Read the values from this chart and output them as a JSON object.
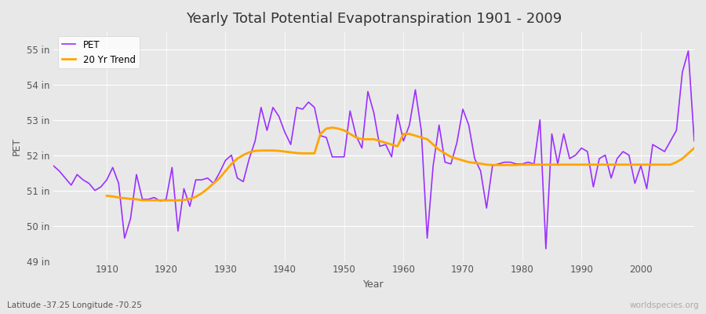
{
  "title": "Yearly Total Potential Evapotranspiration 1901 - 2009",
  "xlabel": "Year",
  "ylabel": "PET",
  "subtitle": "Latitude -37.25 Longitude -70.25",
  "watermark": "worldspecies.org",
  "ylim": [
    49,
    55.5
  ],
  "yticks": [
    49,
    50,
    51,
    52,
    53,
    54,
    55
  ],
  "ytick_labels": [
    "49 in",
    "50 in",
    "51 in",
    "52 in",
    "53 in",
    "54 in",
    "55 in"
  ],
  "xlim": [
    1901,
    2009
  ],
  "pet_color": "#9B30FF",
  "trend_color": "#FFA500",
  "bg_color": "#E8E8E8",
  "legend_bg": "#FFFFFF",
  "years": [
    1901,
    1902,
    1903,
    1904,
    1905,
    1906,
    1907,
    1908,
    1909,
    1910,
    1911,
    1912,
    1913,
    1914,
    1915,
    1916,
    1917,
    1918,
    1919,
    1920,
    1921,
    1922,
    1923,
    1924,
    1925,
    1926,
    1927,
    1928,
    1929,
    1930,
    1931,
    1932,
    1933,
    1934,
    1935,
    1936,
    1937,
    1938,
    1939,
    1940,
    1941,
    1942,
    1943,
    1944,
    1945,
    1946,
    1947,
    1948,
    1949,
    1950,
    1951,
    1952,
    1953,
    1954,
    1955,
    1956,
    1957,
    1958,
    1959,
    1960,
    1961,
    1962,
    1963,
    1964,
    1965,
    1966,
    1967,
    1968,
    1969,
    1970,
    1971,
    1972,
    1973,
    1974,
    1975,
    1976,
    1977,
    1978,
    1979,
    1980,
    1981,
    1982,
    1983,
    1984,
    1985,
    1986,
    1987,
    1988,
    1989,
    1990,
    1991,
    1992,
    1993,
    1994,
    1995,
    1996,
    1997,
    1998,
    1999,
    2000,
    2001,
    2002,
    2003,
    2004,
    2005,
    2006,
    2007,
    2008,
    2009
  ],
  "pet_values": [
    51.7,
    51.55,
    51.35,
    51.15,
    51.45,
    51.3,
    51.2,
    51.0,
    51.1,
    51.3,
    51.65,
    51.2,
    49.65,
    50.2,
    51.45,
    50.75,
    50.75,
    50.8,
    50.7,
    50.75,
    51.65,
    49.85,
    51.05,
    50.55,
    51.3,
    51.3,
    51.35,
    51.2,
    51.5,
    51.85,
    52.0,
    51.35,
    51.25,
    51.9,
    52.4,
    53.35,
    52.7,
    53.35,
    53.1,
    52.65,
    52.3,
    53.35,
    53.3,
    53.5,
    53.35,
    52.55,
    52.5,
    51.95,
    51.95,
    51.95,
    53.25,
    52.55,
    52.2,
    53.8,
    53.2,
    52.25,
    52.3,
    51.95,
    53.15,
    52.4,
    52.85,
    53.85,
    52.7,
    49.65,
    51.7,
    52.85,
    51.8,
    51.75,
    52.35,
    53.3,
    52.85,
    51.9,
    51.55,
    50.5,
    51.7,
    51.75,
    51.8,
    51.8,
    51.75,
    51.75,
    51.8,
    51.75,
    53.0,
    49.35,
    52.6,
    51.75,
    52.6,
    51.9,
    52.0,
    52.2,
    52.1,
    51.1,
    51.9,
    52.0,
    51.35,
    51.9,
    52.1,
    52.0,
    51.2,
    51.7,
    51.05,
    52.3,
    52.2,
    52.1,
    52.4,
    52.7,
    54.35,
    54.95,
    52.4
  ],
  "trend_years": [
    1910,
    1911,
    1912,
    1913,
    1914,
    1915,
    1916,
    1917,
    1918,
    1919,
    1920,
    1921,
    1922,
    1923,
    1924,
    1925,
    1926,
    1927,
    1928,
    1929,
    1930,
    1931,
    1932,
    1933,
    1934,
    1935,
    1936,
    1937,
    1938,
    1939,
    1940,
    1941,
    1942,
    1943,
    1944,
    1945,
    1946,
    1947,
    1948,
    1949,
    1950,
    1951,
    1952,
    1953,
    1954,
    1955,
    1956,
    1957,
    1958,
    1959,
    1960,
    1961,
    1962,
    1963,
    1964,
    1965,
    1966,
    1967,
    1968,
    1969,
    1970,
    1971,
    1972,
    1973,
    1974,
    1975,
    1976,
    1977,
    1978,
    1979,
    1980,
    1981,
    1982,
    1983,
    1984,
    1985,
    1986,
    1987,
    1988,
    1989,
    1990,
    1991,
    1992,
    1993,
    1994,
    1995,
    1996,
    1997,
    1998,
    1999,
    2000,
    2001,
    2002,
    2003,
    2004,
    2005,
    2006,
    2007,
    2008,
    2009
  ],
  "trend_values": [
    50.85,
    50.83,
    50.8,
    50.78,
    50.76,
    50.75,
    50.72,
    50.72,
    50.72,
    50.72,
    50.72,
    50.72,
    50.72,
    50.73,
    50.76,
    50.82,
    50.92,
    51.05,
    51.2,
    51.35,
    51.55,
    51.75,
    51.9,
    52.0,
    52.08,
    52.12,
    52.13,
    52.13,
    52.13,
    52.12,
    52.1,
    52.08,
    52.06,
    52.05,
    52.05,
    52.05,
    52.6,
    52.75,
    52.78,
    52.75,
    52.7,
    52.6,
    52.5,
    52.45,
    52.45,
    52.45,
    52.4,
    52.35,
    52.3,
    52.25,
    52.6,
    52.6,
    52.55,
    52.5,
    52.45,
    52.3,
    52.15,
    52.05,
    51.95,
    51.9,
    51.85,
    51.8,
    51.78,
    51.76,
    51.73,
    51.72,
    51.72,
    51.72,
    51.72,
    51.72,
    51.73,
    51.73,
    51.73,
    51.73,
    51.73,
    51.73,
    51.73,
    51.73,
    51.73,
    51.73,
    51.73,
    51.73,
    51.73,
    51.73,
    51.73,
    51.73,
    51.73,
    51.73,
    51.73,
    51.73,
    51.73,
    51.73,
    51.73,
    51.73,
    51.73,
    51.73,
    51.8,
    51.9,
    52.05,
    52.2
  ]
}
